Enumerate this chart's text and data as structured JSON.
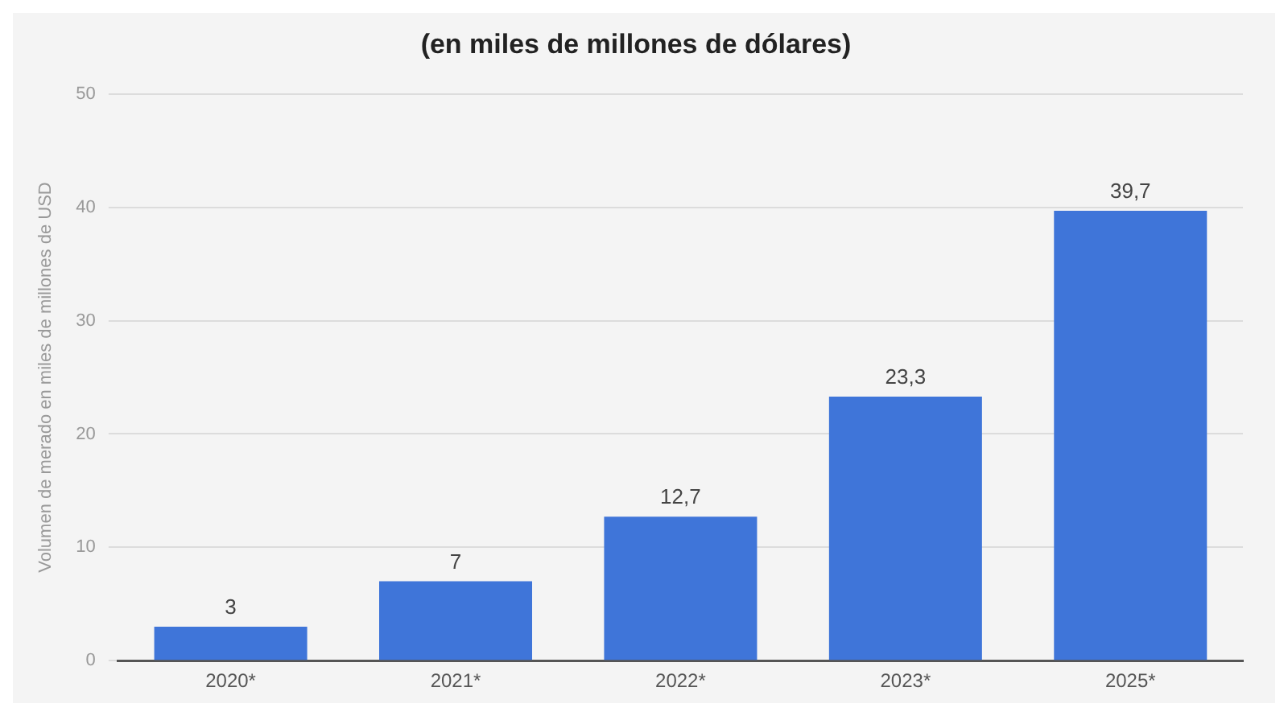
{
  "chart_data": {
    "type": "bar",
    "title": "(en miles de millones de dólares)",
    "ylabel": "Volumen de merado en miles de millones de USD",
    "categories": [
      "2020*",
      "2021*",
      "2022*",
      "2023*",
      "2025*"
    ],
    "values": [
      3,
      7,
      12.7,
      23.3,
      39.7
    ],
    "color": "#3f75d9",
    "value_labels": [
      "3",
      "7",
      "12,7",
      "23,3",
      "39,7"
    ],
    "ylim": [
      0,
      50
    ],
    "yticks": [
      0,
      10,
      20,
      30,
      40,
      50
    ],
    "grid": "y"
  }
}
